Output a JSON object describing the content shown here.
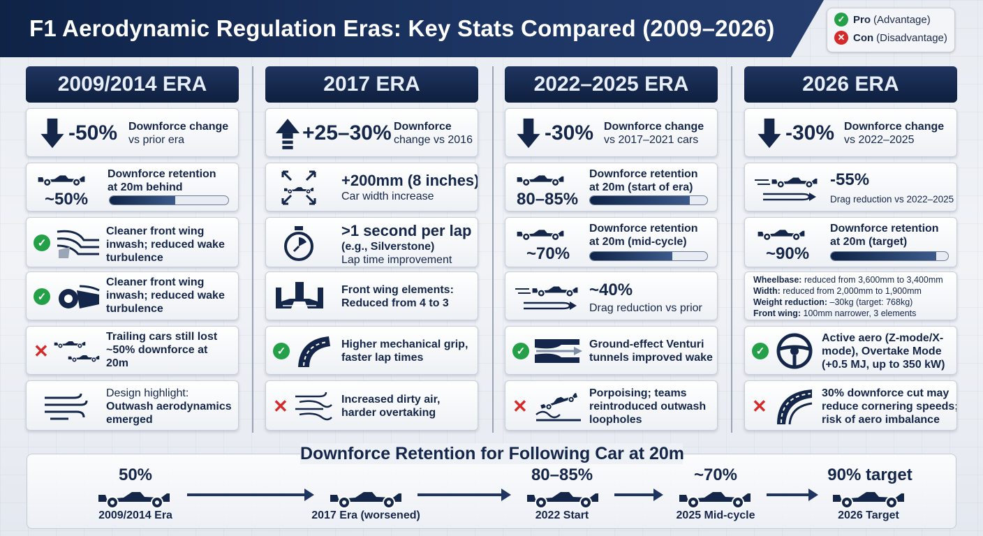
{
  "title": "F1 Aerodynamic Regulation Eras: Key Stats Compared (2009–2026)",
  "legend": {
    "pro_label": "Pro",
    "pro_desc": "(Advantage)",
    "con_label": "Con",
    "con_desc": "(Disadvantage)",
    "pro_color": "#24a148",
    "con_color": "#d42a2a"
  },
  "eras": [
    {
      "header": "2009/2014 ERA",
      "downforce": {
        "value": "-50%",
        "label": "Downforce change",
        "sub": "vs prior era",
        "icon": "arrow-down-icon"
      },
      "retention": {
        "value": "~50%",
        "label_line1": "Downforce retention",
        "label_line2": "at 20m behind",
        "level": 0.55
      },
      "item1": {
        "line1": "Cleaner front wing",
        "line2": "inwash; reduced wake",
        "line3": "turbulence",
        "type": "pro",
        "icon": "inwash-airflow-icon"
      },
      "item2": {
        "line1": "Cleaner front wing",
        "line2": "inwash; reduced wake",
        "line3": "turbulence",
        "type": "pro",
        "icon": "front-wing-icon"
      },
      "item3": {
        "line1": "Trailing cars still lost",
        "line2": "~50% downforce at",
        "line3": "20m",
        "type": "con",
        "icon": "following-cars-icon"
      },
      "item4": {
        "line1": "Design highlight:",
        "line2": "Outwash aerodynamics",
        "line3": "emerged",
        "icon": "wind-icon"
      }
    },
    {
      "header": "2017 ERA",
      "downforce": {
        "value": "+25–30%",
        "label": "Downforce",
        "sub": "change vs 2016",
        "icon": "arrow-up-icon"
      },
      "width": {
        "value": "+200mm (8 inches)",
        "label": "Car width increase",
        "icon": "expand-arrows-icon"
      },
      "laptime": {
        "value": ">1 second per lap",
        "sub": "(e.g., Silverstone)",
        "label": "Lap time improvement",
        "icon": "stopwatch-icon"
      },
      "wing": {
        "line1": "Front wing elements:",
        "line2": "Reduced from 4 to 3",
        "icon": "front-wing-elements-icon"
      },
      "item1": {
        "line1": "Higher mechanical grip,",
        "line2": "faster lap times",
        "type": "pro",
        "icon": "road-curve-icon"
      },
      "item2": {
        "line1": "Increased dirty air,",
        "line2": "harder overtaking",
        "type": "con",
        "icon": "dirty-air-icon"
      }
    },
    {
      "header": "2022–2025 ERA",
      "downforce": {
        "value": "-30%",
        "label": "Downforce change",
        "sub": "vs 2017–2021 cars",
        "icon": "arrow-down-icon"
      },
      "retention1": {
        "value": "80–85%",
        "label_line1": "Downforce retention",
        "label_line2": "at 20m (start of era)",
        "level": 0.85
      },
      "retention2": {
        "value": "~70%",
        "label_line1": "Downforce retention",
        "label_line2": "at 20m (mid-cycle)",
        "level": 0.7
      },
      "drag": {
        "value": "~40%",
        "label": "Drag reduction vs prior",
        "icon": "drag-car-icon"
      },
      "item1": {
        "line1": "Ground-effect Venturi",
        "line2": "tunnels improved wake",
        "type": "pro",
        "icon": "venturi-tunnel-icon"
      },
      "item2": {
        "line1": "Porpoising; teams",
        "line2": "reintroduced outwash",
        "line3": "loopholes",
        "type": "con",
        "icon": "porpoising-car-icon"
      }
    },
    {
      "header": "2026 ERA",
      "downforce": {
        "value": "-30%",
        "label": "Downforce change",
        "sub": "vs 2022–2025",
        "icon": "arrow-down-icon"
      },
      "drag": {
        "value": "-55%",
        "label": "Drag reduction vs 2022–2025",
        "icon": "drag-car-icon"
      },
      "retention": {
        "value": "~90%",
        "label_line1": "Downforce retention",
        "label_line2": "at 20m (target)",
        "level": 0.9
      },
      "specs": [
        {
          "key": "Wheelbase:",
          "val": "reduced from 3,600mm to 3,400mm"
        },
        {
          "key": "Width:",
          "val": "reduced from 2,000mm to 1,900mm"
        },
        {
          "key": "Weight reduction:",
          "val": "–30kg (target: 768kg)"
        },
        {
          "key": "Front wing:",
          "val": "100mm narrower, 3 elements"
        }
      ],
      "item1": {
        "line1": "Active aero (Z-mode/X-",
        "line2": "mode), Overtake Mode",
        "line3": "(+0.5 MJ, up to 350 kW)",
        "type": "pro",
        "icon": "steering-wheel-icon"
      },
      "item2": {
        "line1": "30% downforce cut may",
        "line2": "reduce cornering speeds;",
        "line3": "risk of aero imbalance",
        "type": "con",
        "icon": "track-corner-icon"
      }
    }
  ],
  "timeline": {
    "title": "Downforce Retention for Following Car at 20m",
    "points": [
      {
        "value": "50%",
        "label": "2009/2014 Era"
      },
      {
        "value": "",
        "label": "2017 Era (worsened)"
      },
      {
        "value": "80–85%",
        "label": "2022 Start"
      },
      {
        "value": "~70%",
        "label": "2025 Mid-cycle"
      },
      {
        "value": "90% target",
        "label": "2026 Target"
      }
    ]
  }
}
